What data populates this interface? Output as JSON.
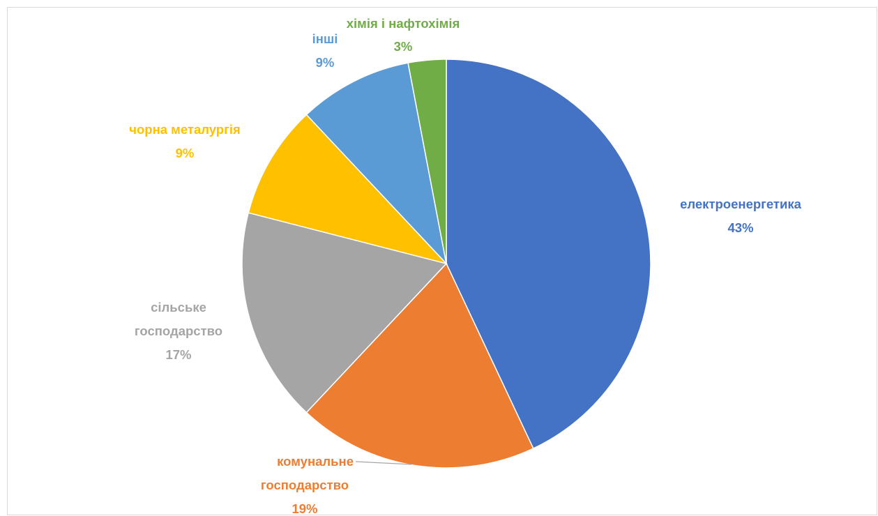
{
  "chart_data": {
    "type": "pie",
    "title": "",
    "labels": [
      "електроенергетика",
      "комунальне господарство",
      "сільське господарство",
      "чорна металургія",
      "інші",
      "хімія і нафтохімія"
    ],
    "values": [
      43,
      19,
      17,
      9,
      9,
      3
    ],
    "value_labels": [
      "43%",
      "19%",
      "17%",
      "9%",
      "9%",
      "3%"
    ],
    "colors": [
      "#4472C4",
      "#ED7D31",
      "#A5A5A5",
      "#FFC000",
      "#5B9BD5",
      "#70AD47"
    ],
    "start_angle_deg": 0,
    "direction": "clockwise",
    "legend": "none",
    "data_labels": "outside, category name and percentage"
  }
}
